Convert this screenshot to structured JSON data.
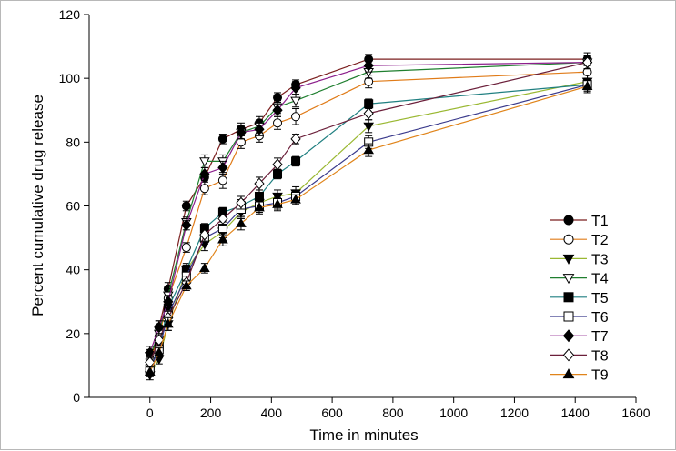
{
  "chart_data": {
    "type": "line",
    "xlabel": "Time in minutes",
    "ylabel": "Percent cumulative drug release",
    "xlim": [
      -200,
      1600
    ],
    "ylim": [
      0,
      120
    ],
    "xticks": [
      0,
      200,
      400,
      600,
      800,
      1000,
      1200,
      1400,
      1600
    ],
    "yticks": [
      0,
      20,
      40,
      60,
      80,
      100,
      120
    ],
    "grid": false,
    "legend_position": "bottom-right",
    "x": [
      0,
      30,
      60,
      120,
      180,
      240,
      300,
      360,
      420,
      480,
      720,
      1440
    ],
    "series": [
      {
        "name": "T1",
        "marker": "circle-filled",
        "color": "#7b1f1f",
        "values": [
          10,
          22,
          34,
          60,
          69,
          81,
          84,
          86,
          94,
          98,
          106,
          106
        ],
        "errors": [
          2,
          2,
          2,
          1.5,
          1.5,
          1.5,
          2,
          2,
          1.5,
          1.5,
          1.5,
          2
        ]
      },
      {
        "name": "T2",
        "marker": "circle-open",
        "color": "#e07b18",
        "values": [
          12,
          19,
          31,
          47,
          65.5,
          68,
          80,
          82,
          86,
          88,
          99,
          102
        ],
        "errors": [
          2,
          2,
          2,
          1.5,
          2,
          2.5,
          2,
          2,
          2,
          2.5,
          2,
          2
        ]
      },
      {
        "name": "T3",
        "marker": "triangle-down-filled",
        "color": "#9ab832",
        "values": [
          7,
          12,
          23,
          40,
          48,
          52,
          58,
          61,
          63,
          64,
          85,
          99
        ],
        "errors": [
          1.5,
          1.5,
          2,
          2,
          2,
          2,
          2,
          2,
          2,
          2,
          2,
          2
        ]
      },
      {
        "name": "T4",
        "marker": "triangle-down-open",
        "color": "#1f7f2f",
        "values": [
          13,
          20,
          32,
          55,
          74,
          74,
          83,
          85,
          91,
          93,
          102,
          105
        ],
        "errors": [
          2,
          2,
          2,
          1.5,
          2,
          2,
          2,
          2,
          2,
          2,
          2,
          2
        ]
      },
      {
        "name": "T5",
        "marker": "square-filled",
        "color": "#1f7f80",
        "values": [
          8,
          16,
          28,
          40,
          53,
          58,
          60,
          63,
          70,
          74,
          92,
          98
        ],
        "errors": [
          1.5,
          1.5,
          2,
          1.5,
          1.5,
          1.5,
          2,
          2,
          1.5,
          1.5,
          1.5,
          2
        ]
      },
      {
        "name": "T6",
        "marker": "square-open",
        "color": "#3a3a8c",
        "values": [
          9,
          15,
          26,
          38,
          50,
          53,
          59,
          60,
          61,
          63,
          80,
          98
        ],
        "errors": [
          1.5,
          2,
          2,
          2,
          2,
          2,
          2,
          2,
          2,
          2,
          2,
          2
        ]
      },
      {
        "name": "T7",
        "marker": "diamond-filled",
        "color": "#8c1f8c",
        "values": [
          14,
          22,
          30,
          54,
          70,
          72,
          83,
          84,
          90,
          97,
          104,
          105
        ],
        "errors": [
          2,
          2,
          2,
          1.5,
          2,
          2,
          2,
          2,
          2,
          2,
          2,
          2
        ]
      },
      {
        "name": "T8",
        "marker": "diamond-open",
        "color": "#6b1f3a",
        "values": [
          11,
          18,
          25,
          36,
          51,
          56,
          61,
          67,
          73,
          81,
          89,
          105
        ],
        "errors": [
          1.5,
          2,
          2,
          2,
          2,
          2,
          2,
          2,
          2,
          1.5,
          2,
          2
        ]
      },
      {
        "name": "T9",
        "marker": "triangle-up-filled",
        "color": "#e0841a",
        "values": [
          8,
          14,
          23,
          35,
          40.5,
          49.5,
          54.5,
          59.5,
          60.5,
          62,
          77.5,
          97.5
        ],
        "errors": [
          1.5,
          1.5,
          2,
          1.5,
          1.5,
          2,
          2,
          2,
          2,
          1.5,
          2,
          2
        ]
      }
    ]
  }
}
